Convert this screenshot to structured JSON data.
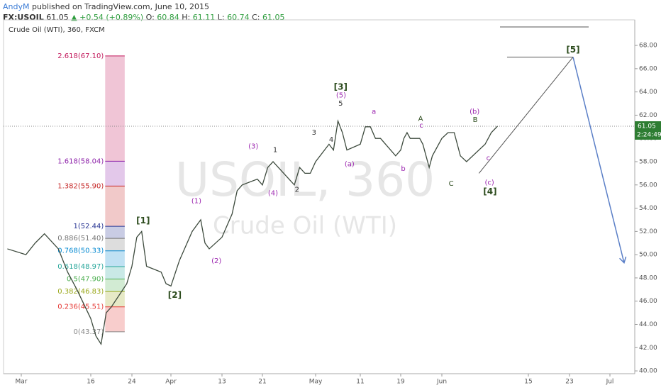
{
  "header": {
    "author": "AndyM",
    "published": "published on TradingView.com, June 10, 2015",
    "symbol": "FX:USOIL",
    "price": "61.05",
    "change": "▲ +0.54 (+0.89%)",
    "o_label": "O: ",
    "open": "60.84",
    "h_label": "H: ",
    "high": "61.11",
    "l_label": "L: ",
    "low": "60.74",
    "c_label": "C: ",
    "close": "61.05"
  },
  "chart_data": {
    "type": "line",
    "title": "Crude Oil (WTI), 360, FXCM",
    "watermark": "USOIL, 360",
    "watermark_sub": "Crude Oil (WTI)",
    "color": "#3d4a3d",
    "x": [
      57,
      61,
      63,
      65,
      68,
      70,
      72,
      75,
      76,
      77,
      78,
      79,
      82,
      83,
      84,
      85,
      86,
      89,
      90,
      91,
      93,
      96,
      98,
      99,
      100,
      103,
      105,
      106,
      107,
      110,
      111,
      112,
      113,
      114,
      117,
      118,
      119,
      120,
      121,
      124,
      125,
      126,
      127,
      128,
      131,
      132,
      133,
      134,
      135,
      138,
      139,
      140,
      141,
      142,
      145,
      146,
      147,
      148,
      149,
      152,
      153,
      154,
      155,
      156,
      159,
      160,
      161
    ],
    "values": [
      50.5,
      50.0,
      51.0,
      51.8,
      50.5,
      48.5,
      47.0,
      44.5,
      43.0,
      42.3,
      45.0,
      45.5,
      47.5,
      49.0,
      51.5,
      52.0,
      49.0,
      48.5,
      47.5,
      47.3,
      49.5,
      52.0,
      53.0,
      51.0,
      50.5,
      51.5,
      53.5,
      55.5,
      56.0,
      56.5,
      56.0,
      57.5,
      58.0,
      57.5,
      56.0,
      57.5,
      57.0,
      57.0,
      58.0,
      59.5,
      59.0,
      61.5,
      60.5,
      59.0,
      59.5,
      61.0,
      61.0,
      60.0,
      60.0,
      58.5,
      59.0,
      60.0,
      60.5,
      60.0,
      60.0,
      59.5,
      58.5,
      57.5,
      58.5,
      60.0,
      60.5,
      60.5,
      58.5,
      58.0,
      59.5,
      60.5,
      61.05
    ],
    "last_price": 61.05,
    "countdown": "2:24:49",
    "xlim": [
      56,
      186
    ],
    "xticks": [
      {
        "value": 60,
        "label": "Mar"
      },
      {
        "value": 75,
        "label": "16"
      },
      {
        "value": 83,
        "label": "24"
      },
      {
        "value": 91,
        "label": "Apr"
      },
      {
        "value": 103,
        "label": "13"
      },
      {
        "value": 111,
        "label": "21"
      },
      {
        "value": 121,
        "label": "May"
      },
      {
        "value": 131,
        "label": "11"
      },
      {
        "value": 139,
        "label": "19"
      },
      {
        "value": 152,
        "label": "Jun"
      },
      {
        "value": 166,
        "label": "15"
      },
      {
        "value": 174,
        "label": "23"
      },
      {
        "value": 182,
        "label": "Jul"
      }
    ],
    "ylim": [
      39.76,
      70.2
    ],
    "yticks": [
      {
        "value": 40,
        "label": "40.00"
      },
      {
        "value": 42,
        "label": "42.00"
      },
      {
        "value": 44,
        "label": "44.00"
      },
      {
        "value": 46,
        "label": "46.00"
      },
      {
        "value": 48,
        "label": "48.00"
      },
      {
        "value": 50,
        "label": "50.00"
      },
      {
        "value": 52,
        "label": "52.00"
      },
      {
        "value": 54,
        "label": "54.00"
      },
      {
        "value": 56,
        "label": "56.00"
      },
      {
        "value": 58,
        "label": "58.00"
      },
      {
        "value": 60,
        "label": "60.00"
      },
      {
        "value": 62,
        "label": "62.00"
      },
      {
        "value": 64,
        "label": "64.00"
      },
      {
        "value": 66,
        "label": "66.00"
      },
      {
        "value": 68,
        "label": "68.00"
      }
    ],
    "fib": {
      "x": [
        77.8,
        81.6
      ],
      "levels": [
        {
          "label": "2.618(67.10)",
          "value": 67.1,
          "color": "#c2185b"
        },
        {
          "label": "1.618(58.04)",
          "value": 58.04,
          "color": "#8e24aa"
        },
        {
          "label": "1.382(55.90)",
          "value": 55.9,
          "color": "#c62828"
        },
        {
          "label": "1(52.44)",
          "value": 52.44,
          "color": "#283593"
        },
        {
          "label": "0.886(51.40)",
          "value": 51.4,
          "color": "#777777"
        },
        {
          "label": "0.768(50.33)",
          "value": 50.33,
          "color": "#0288d1"
        },
        {
          "label": "0.618(48.97)",
          "value": 48.97,
          "color": "#26a69a"
        },
        {
          "label": "0.5(47.90)",
          "value": 47.9,
          "color": "#4caf50"
        },
        {
          "label": "0.382(46.83)",
          "value": 46.83,
          "color": "#9aa81a"
        },
        {
          "label": "0.236(45.51)",
          "value": 45.51,
          "color": "#e53935"
        },
        {
          "label": "0(43.37)",
          "value": 43.37,
          "color": "#888888"
        }
      ]
    },
    "projection": {
      "x": [
        158,
        174.7,
        184.8
      ],
      "values": [
        57.0,
        67.0,
        49.3
      ],
      "target": 67.0
    },
    "annotations": [
      {
        "text": "[1]",
        "x": 85.3,
        "y": 52.9,
        "color": "#2e4d1f"
      },
      {
        "text": "[2]",
        "x": 91.9,
        "y": 46.5,
        "color": "#2e4d1f"
      },
      {
        "text": "[3]",
        "x": 126.6,
        "y": 64.4,
        "color": "#2e4d1f"
      },
      {
        "text": "(5)",
        "x": 126.7,
        "y": 63.7,
        "color": "#9c27b0"
      },
      {
        "text": "5",
        "x": 126.6,
        "y": 63.0,
        "color": "#333333"
      },
      {
        "text": "[4]",
        "x": 159.8,
        "y": 55.4,
        "color": "#2e4d1f"
      },
      {
        "text": "[5]",
        "x": 174.7,
        "y": 67.6,
        "color": "#2e4d1f"
      },
      {
        "text": "(1)",
        "x": 97,
        "y": 54.6,
        "color": "#9c27b0"
      },
      {
        "text": "(2)",
        "x": 101.7,
        "y": 49.46,
        "color": "#9c27b0"
      },
      {
        "text": "(3)",
        "x": 109.2,
        "y": 59.3,
        "color": "#9c27b0"
      },
      {
        "text": "(4)",
        "x": 113,
        "y": 55.3,
        "color": "#9c27b0"
      },
      {
        "text": "1",
        "x": 113.4,
        "y": 59.0,
        "color": "#333333"
      },
      {
        "text": "2",
        "x": 117.5,
        "y": 55.6,
        "color": "#333333"
      },
      {
        "text": "3",
        "x": 120.7,
        "y": 60.5,
        "color": "#333333"
      },
      {
        "text": "4",
        "x": 124.5,
        "y": 59.9,
        "color": "#333333"
      },
      {
        "text": "(a)",
        "x": 128.6,
        "y": 57.8,
        "color": "#9c27b0"
      },
      {
        "text": "a",
        "x": 133.7,
        "y": 62.3,
        "color": "#9c27b0"
      },
      {
        "text": "b",
        "x": 139.8,
        "y": 57.4,
        "color": "#9c27b0"
      },
      {
        "text": "A",
        "x": 145.3,
        "y": 61.7,
        "color": "#2e4d1f"
      },
      {
        "text": "c",
        "x": 145.5,
        "y": 61.1,
        "color": "#9c27b0"
      },
      {
        "text": "C",
        "x": 153.5,
        "y": 56.1,
        "color": "#2e4d1f"
      },
      {
        "text": "(b)",
        "x": 157.3,
        "y": 62.3,
        "color": "#9c27b0"
      },
      {
        "text": "B",
        "x": 157.4,
        "y": 61.6,
        "color": "#2e4d1f"
      },
      {
        "text": "c",
        "x": 159.5,
        "y": 58.3,
        "color": "#9c27b0"
      },
      {
        "text": "(c)",
        "x": 159.7,
        "y": 56.2,
        "color": "#9c27b0"
      }
    ]
  }
}
